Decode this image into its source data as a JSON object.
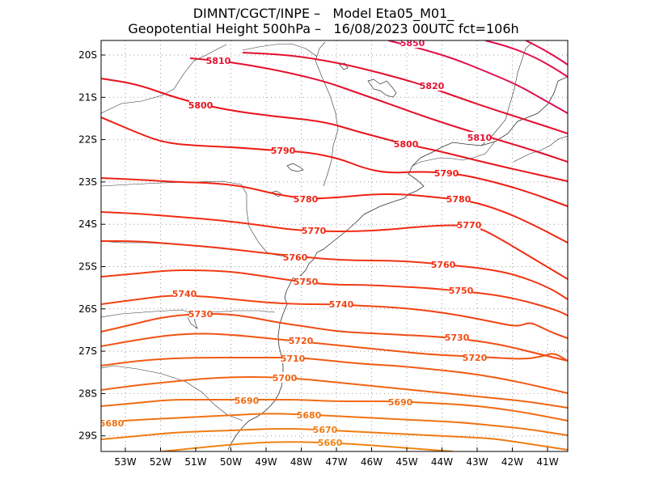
{
  "title_line1": "DIMNT/CGCT/INPE –   Model Eta05_M01_",
  "title_line2": "Geopotential Height 500hPa –   16/08/2023 00UTC fct=106h",
  "lat_labels": [
    "20S",
    "21S",
    "22S",
    "23S",
    "24S",
    "25S",
    "26S",
    "27S",
    "28S",
    "29S"
  ],
  "lon_labels": [
    "53W",
    "52W",
    "51W",
    "50W",
    "49W",
    "48W",
    "47W",
    "46W",
    "45W",
    "44W",
    "43W",
    "42W",
    "41W"
  ],
  "contours": [
    {
      "level": 5850,
      "label": "5850",
      "color": "#e0104a"
    },
    {
      "level": 5840,
      "label": "",
      "color": "#e0104a"
    },
    {
      "level": 5830,
      "label": "",
      "color": "#e0104a"
    },
    {
      "level": 5820,
      "label": "5820",
      "color": "#e4102e"
    },
    {
      "level": 5810,
      "label": "5810",
      "color": "#e4102e"
    },
    {
      "level": 5800,
      "label": "5800",
      "color": "#e8141c"
    },
    {
      "level": 5790,
      "label": "5790",
      "color": "#ec1c14"
    },
    {
      "level": 5780,
      "label": "5780",
      "color": "#f02414"
    },
    {
      "level": 5770,
      "label": "5770",
      "color": "#f02c14"
    },
    {
      "level": 5760,
      "label": "5760",
      "color": "#f03414"
    },
    {
      "level": 5750,
      "label": "5750",
      "color": "#f03c14"
    },
    {
      "level": 5740,
      "label": "5740",
      "color": "#f04414"
    },
    {
      "level": 5730,
      "label": "5730",
      "color": "#f04c14"
    },
    {
      "level": 5720,
      "label": "5720",
      "color": "#f05414"
    },
    {
      "level": 5710,
      "label": "5710",
      "color": "#f05c14"
    },
    {
      "level": 5700,
      "label": "5700",
      "color": "#f06414"
    },
    {
      "level": 5690,
      "label": "5690",
      "color": "#f06c14"
    },
    {
      "level": 5680,
      "label": "5680",
      "color": "#f07414"
    },
    {
      "level": 5670,
      "label": "5670",
      "color": "#f07c14"
    },
    {
      "level": 5660,
      "label": "5660",
      "color": "#f08414"
    }
  ]
}
